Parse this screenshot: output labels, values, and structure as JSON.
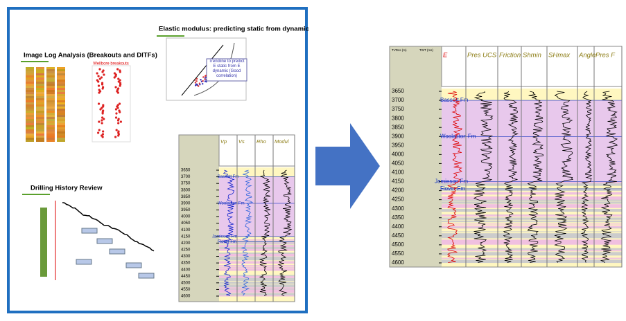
{
  "left_panel": {
    "image_log_title": "Image Log Analysis (Breakouts and DITFs)",
    "breakouts_label": "Wellbore breakouts",
    "elastic_title": "Elastic modulus: predicting static from dynamic",
    "elastic_note": "Trendline to predict E static from E dynamic (Good correlation)",
    "drilling_title": "Drilling History Review",
    "small_log_headers": [
      "Vp",
      "Vs",
      "Rho",
      "Modul"
    ]
  },
  "log": {
    "depth_header": "TVDss (m)",
    "time_header": "TWT (ms)",
    "tracks": [
      "E",
      "Pres UCS",
      "Friction",
      "Shmin",
      "SHmax",
      "Angle",
      "Pres F"
    ]
  },
  "depth_ticks": [
    "3650",
    "3700",
    "3750",
    "3800",
    "3850",
    "3900",
    "3950",
    "4000",
    "4050",
    "4100",
    "4150",
    "4200",
    "4250",
    "4300",
    "4350",
    "4400",
    "4450",
    "4500",
    "4550",
    "4600"
  ],
  "formations": [
    "Bassett Fm",
    "Woolaston Fm",
    "Jamieson Fm",
    "Flover Fm"
  ]
}
